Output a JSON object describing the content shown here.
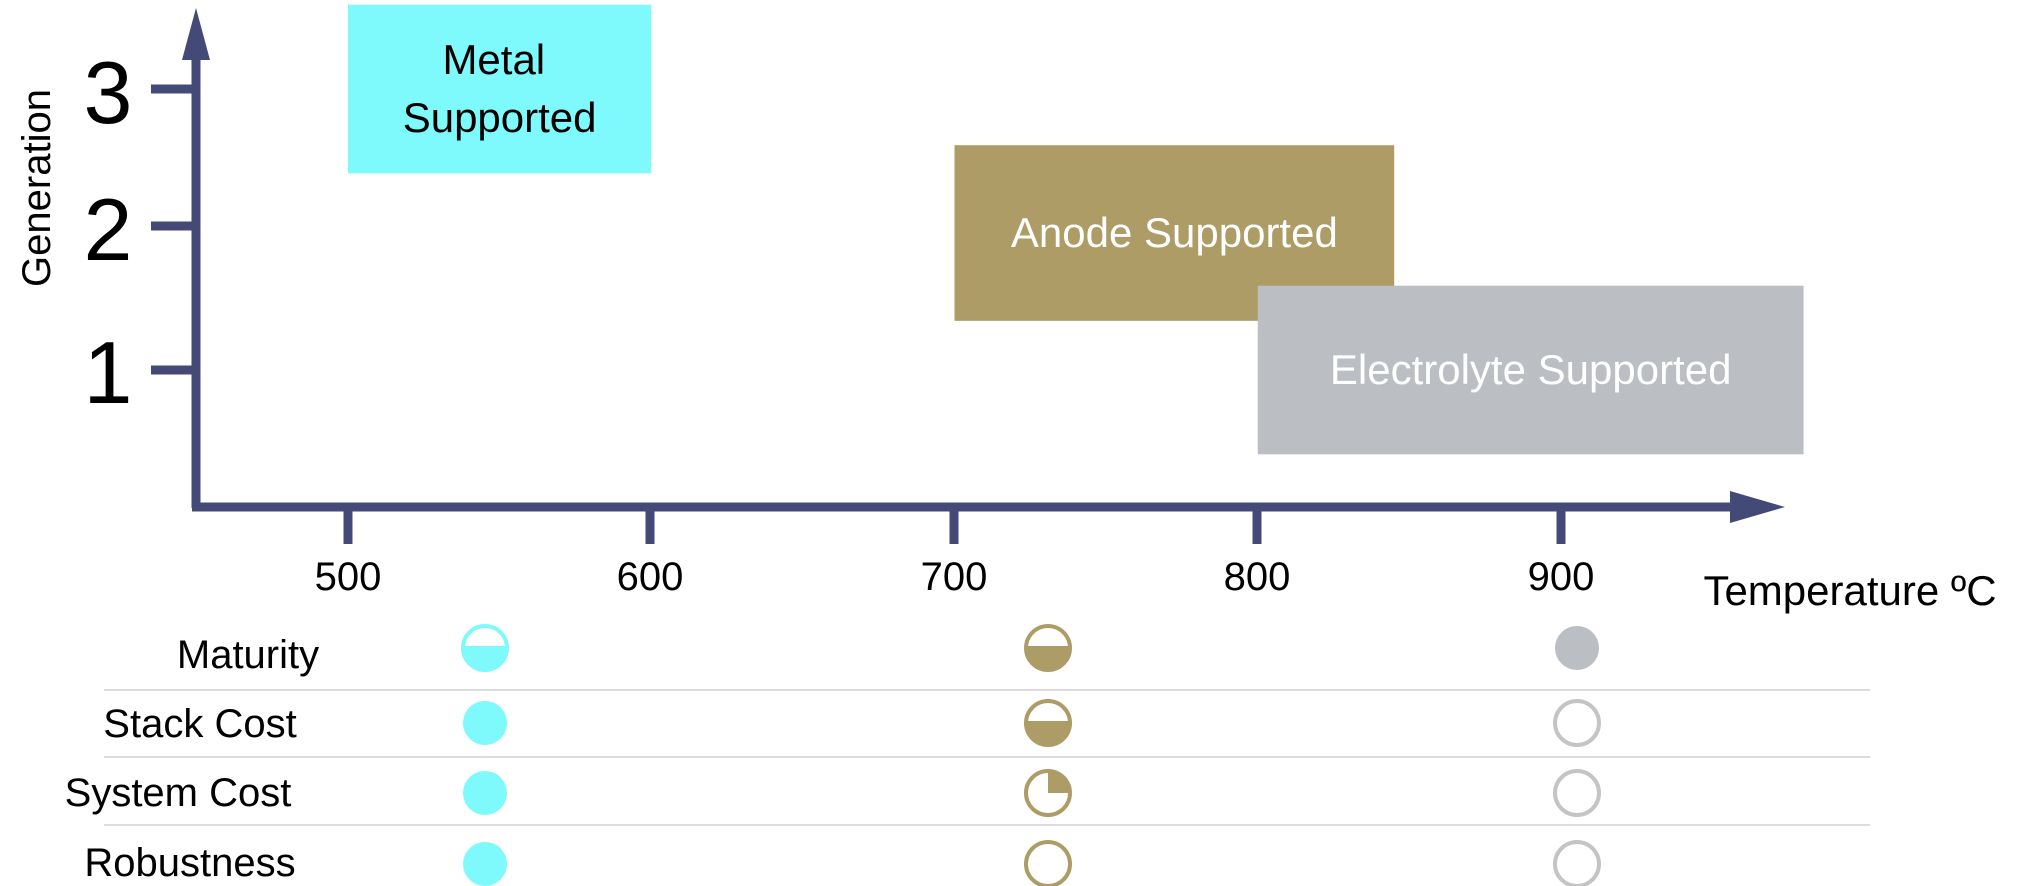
{
  "colors": {
    "axis": "#434a78",
    "metal": "#7ef9fc",
    "anode": "#ad9c65",
    "electrolyte": "#bbbec3",
    "divider": "#dcdcdc",
    "empty_circle": "#c4c4c4"
  },
  "y_axis": {
    "label": "Generation",
    "ticks": [
      "1",
      "2",
      "3"
    ]
  },
  "x_axis": {
    "label": "Temperature ºC",
    "ticks": [
      "500",
      "600",
      "700",
      "800",
      "900"
    ]
  },
  "regions": [
    {
      "label_lines": [
        "Metal",
        "Supported"
      ],
      "temp_range": [
        500,
        600
      ],
      "generation_range": [
        2.4,
        3.6
      ],
      "color_key": "metal",
      "text_color": "#000000"
    },
    {
      "label_lines": [
        "Anode Supported"
      ],
      "temp_range": [
        700,
        845
      ],
      "generation_range": [
        1.35,
        2.6
      ],
      "color_key": "anode",
      "text_color": "#ffffff"
    },
    {
      "label_lines": [
        "Electrolyte Supported"
      ],
      "temp_range": [
        800,
        980
      ],
      "generation_range": [
        0.4,
        1.6
      ],
      "color_key": "electrolyte",
      "text_color": "#ffffff"
    }
  ],
  "table": {
    "criteria": [
      "Maturity",
      "Stack Cost",
      "System Cost",
      "Robustness"
    ],
    "columns": [
      "metal",
      "anode",
      "electrolyte"
    ],
    "ratings": {
      "metal": [
        "half",
        "full",
        "full",
        "full"
      ],
      "anode": [
        "half",
        "half",
        "quarter",
        "empty"
      ],
      "electrolyte": [
        "full",
        "empty",
        "empty",
        "empty"
      ]
    }
  }
}
